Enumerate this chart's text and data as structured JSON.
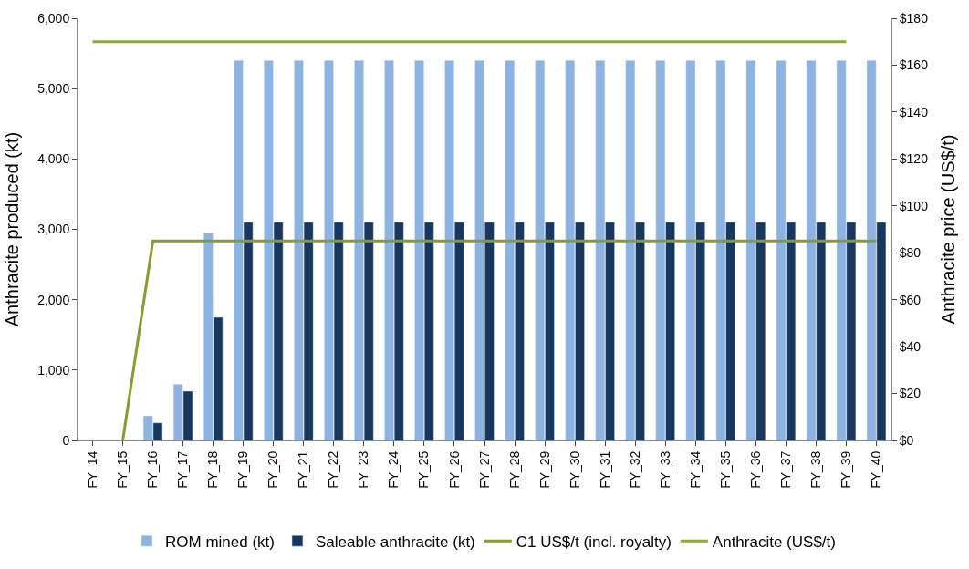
{
  "chart_data": {
    "type": "bar",
    "ylabel": "Anthracite produced (kt)",
    "y2label": "Anthracite price (US$/t)",
    "categories": [
      "FY_14",
      "FY_15",
      "FY_16",
      "FY_17",
      "FY_18",
      "FY_19",
      "FY_20",
      "FY_21",
      "FY_22",
      "FY_23",
      "FY_24",
      "FY_25",
      "FY_26",
      "FY_27",
      "FY_28",
      "FY_29",
      "FY_30",
      "FY_31",
      "FY_32",
      "FY_33",
      "FY_34",
      "FY_35",
      "FY_36",
      "FY_37",
      "FY_38",
      "FY_39",
      "FY_40"
    ],
    "series": [
      {
        "name": "ROM mined (kt)",
        "color": "#8db3e2",
        "values": [
          null,
          null,
          350,
          800,
          2950,
          5400,
          5400,
          5400,
          5400,
          5400,
          5400,
          5400,
          5400,
          5400,
          5400,
          5400,
          5400,
          5400,
          5400,
          5400,
          5400,
          5400,
          5400,
          5400,
          5400,
          5400,
          5400
        ]
      },
      {
        "name": "Saleable anthracite (kt)",
        "color": "#17375e",
        "values": [
          null,
          null,
          250,
          700,
          1750,
          3100,
          3100,
          3100,
          3100,
          3100,
          3100,
          3100,
          3100,
          3100,
          3100,
          3100,
          3100,
          3100,
          3100,
          3100,
          3100,
          3100,
          3100,
          3100,
          3100,
          3100,
          3100
        ]
      },
      {
        "name": "C1 US$/t (incl. royalty)",
        "type": "line",
        "axis": "y2",
        "color": "#8a9a2e",
        "values": [
          null,
          0,
          85,
          85,
          85,
          85,
          85,
          85,
          85,
          85,
          85,
          85,
          85,
          85,
          85,
          85,
          85,
          85,
          85,
          85,
          85,
          85,
          85,
          85,
          85,
          85,
          85
        ]
      },
      {
        "name": "Anthracite (US$/t)",
        "type": "line",
        "axis": "y2",
        "color": "#8faa3c",
        "values": [
          170,
          170,
          170,
          170,
          170,
          170,
          170,
          170,
          170,
          170,
          170,
          170,
          170,
          170,
          170,
          170,
          170,
          170,
          170,
          170,
          170,
          170,
          170,
          170,
          170,
          170,
          null
        ]
      }
    ],
    "ylim": [
      0,
      6000
    ],
    "yticks": [
      {
        "value": 0,
        "label": "0"
      },
      {
        "value": 1000,
        "label": "1,000"
      },
      {
        "value": 2000,
        "label": "2,000"
      },
      {
        "value": 3000,
        "label": "3,000"
      },
      {
        "value": 4000,
        "label": "4,000"
      },
      {
        "value": 5000,
        "label": "5,000"
      },
      {
        "value": 6000,
        "label": "6,000"
      }
    ],
    "y2lim": [
      0,
      180
    ],
    "y2ticks": [
      {
        "value": 0,
        "label": "$0"
      },
      {
        "value": 20,
        "label": "$20"
      },
      {
        "value": 40,
        "label": "$40"
      },
      {
        "value": 60,
        "label": "$60"
      },
      {
        "value": 80,
        "label": "$80"
      },
      {
        "value": 100,
        "label": "$100"
      },
      {
        "value": 120,
        "label": "$120"
      },
      {
        "value": 140,
        "label": "$140"
      },
      {
        "value": 160,
        "label": "$160"
      },
      {
        "value": 180,
        "label": "$180"
      }
    ],
    "legend": "bottom",
    "marker": "none",
    "line_style": "solid"
  }
}
